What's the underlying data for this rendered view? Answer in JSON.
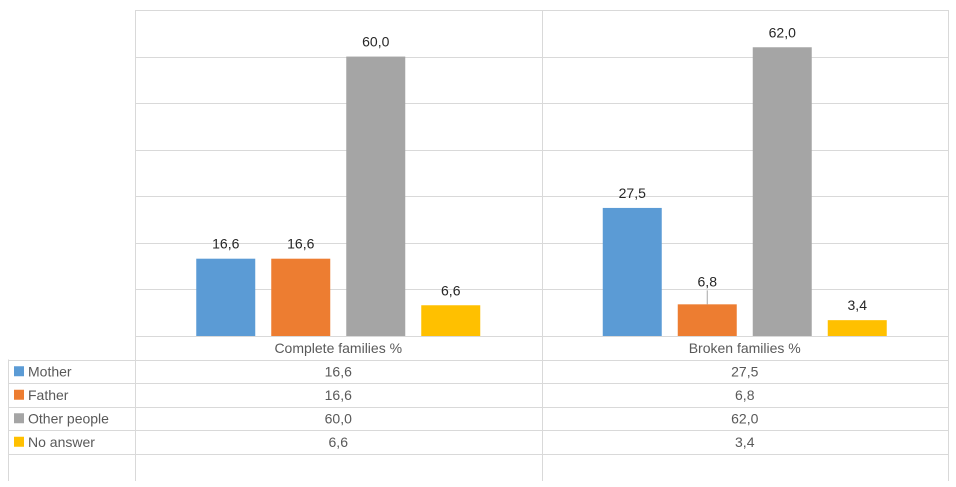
{
  "chart_data": {
    "type": "bar",
    "categories": [
      "Complete families %",
      "Broken families %"
    ],
    "series": [
      {
        "name": "Mother",
        "values": [
          16.6,
          27.5
        ],
        "labels": [
          "16,6",
          "27,5"
        ],
        "color": "#5B9BD5"
      },
      {
        "name": "Father",
        "values": [
          16.6,
          6.8
        ],
        "labels": [
          "16,6",
          "6,8"
        ],
        "color": "#ED7D31"
      },
      {
        "name": "Other people",
        "values": [
          60.0,
          62.0
        ],
        "labels": [
          "60,0",
          "62,0"
        ],
        "color": "#A5A5A5"
      },
      {
        "name": "No answer",
        "values": [
          6.6,
          3.4
        ],
        "labels": [
          "6,6",
          "3,4"
        ],
        "color": "#FFC000"
      }
    ],
    "ylim": [
      0,
      70
    ],
    "grid": true,
    "legend": "data-table",
    "title": "",
    "xlabel": "",
    "ylabel": ""
  }
}
